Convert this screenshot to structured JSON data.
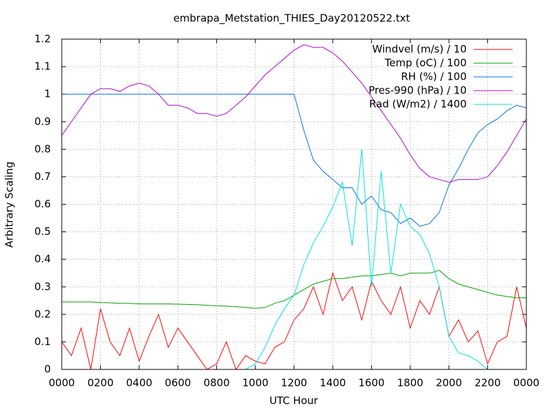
{
  "chart_data": {
    "type": "line",
    "title": "embrapa_Metstation_THIES_Day20120522.txt",
    "x_label": "UTC Hour",
    "y_label": "Arbitrary Scaling",
    "grid": true,
    "legend": "top-right",
    "xlim": [
      0,
      24
    ],
    "ylim": [
      0,
      1.2
    ],
    "xticks": [
      {
        "value": 0,
        "label": "0000"
      },
      {
        "value": 2,
        "label": "0200"
      },
      {
        "value": 4,
        "label": "0400"
      },
      {
        "value": 6,
        "label": "0600"
      },
      {
        "value": 8,
        "label": "0800"
      },
      {
        "value": 10,
        "label": "1000"
      },
      {
        "value": 12,
        "label": "1200"
      },
      {
        "value": 14,
        "label": "1400"
      },
      {
        "value": 16,
        "label": "1600"
      },
      {
        "value": 18,
        "label": "1800"
      },
      {
        "value": 20,
        "label": "2000"
      },
      {
        "value": 22,
        "label": "2200"
      },
      {
        "value": 24,
        "label": "0000"
      }
    ],
    "yticks": [
      0,
      0.1,
      0.2,
      0.3,
      0.4,
      0.5,
      0.6,
      0.7,
      0.8,
      0.9,
      1,
      1.1,
      1.2
    ],
    "x": [
      0,
      0.5,
      1,
      1.5,
      2,
      2.5,
      3,
      3.5,
      4,
      4.5,
      5,
      5.5,
      6,
      6.5,
      7,
      7.5,
      8,
      8.5,
      9,
      9.5,
      10,
      10.5,
      11,
      11.5,
      12,
      12.5,
      13,
      13.5,
      14,
      14.5,
      15,
      15.5,
      16,
      16.5,
      17,
      17.5,
      18,
      18.5,
      19,
      19.5,
      20,
      20.5,
      21,
      21.5,
      22,
      22.5,
      23,
      23.5,
      24
    ],
    "series": [
      {
        "name": "Windvel (m/s) / 10",
        "color": "#ff0000",
        "values": [
          0.1,
          0.05,
          0.15,
          0.0,
          0.22,
          0.1,
          0.05,
          0.15,
          0.03,
          0.12,
          0.2,
          0.08,
          0.15,
          0.1,
          0.05,
          0.0,
          0.02,
          0.1,
          0.0,
          0.05,
          0.03,
          0.02,
          0.08,
          0.1,
          0.18,
          0.22,
          0.3,
          0.2,
          0.35,
          0.25,
          0.3,
          0.18,
          0.32,
          0.25,
          0.2,
          0.3,
          0.15,
          0.25,
          0.2,
          0.3,
          0.12,
          0.18,
          0.1,
          0.14,
          0.02,
          0.1,
          0.12,
          0.3,
          0.15
        ]
      },
      {
        "name": "Temp (oC) / 100",
        "color": "#00a000",
        "values": [
          0.245,
          0.245,
          0.245,
          0.245,
          0.243,
          0.242,
          0.24,
          0.24,
          0.238,
          0.238,
          0.238,
          0.238,
          0.237,
          0.236,
          0.235,
          0.233,
          0.231,
          0.23,
          0.228,
          0.225,
          0.222,
          0.225,
          0.24,
          0.25,
          0.27,
          0.29,
          0.31,
          0.32,
          0.33,
          0.33,
          0.335,
          0.34,
          0.34,
          0.345,
          0.35,
          0.34,
          0.35,
          0.35,
          0.35,
          0.36,
          0.33,
          0.31,
          0.3,
          0.29,
          0.28,
          0.27,
          0.265,
          0.26,
          0.26
        ]
      },
      {
        "name": "RH (%) / 100",
        "color": "#0070e0",
        "values": [
          1,
          1,
          1,
          1,
          1,
          1,
          1,
          1,
          1,
          1,
          1,
          1,
          1,
          1,
          1,
          1,
          1,
          1,
          1,
          1,
          1,
          1,
          1,
          1,
          1,
          0.87,
          0.76,
          0.72,
          0.69,
          0.66,
          0.66,
          0.6,
          0.63,
          0.58,
          0.57,
          0.53,
          0.55,
          0.52,
          0.53,
          0.57,
          0.67,
          0.73,
          0.8,
          0.86,
          0.89,
          0.91,
          0.94,
          0.96,
          0.95
        ]
      },
      {
        "name": "Pres-990 (hPa) / 10",
        "color": "#b000d8",
        "values": [
          0.85,
          0.9,
          0.95,
          1.0,
          1.02,
          1.02,
          1.01,
          1.03,
          1.04,
          1.03,
          1.0,
          0.96,
          0.96,
          0.95,
          0.93,
          0.93,
          0.92,
          0.93,
          0.96,
          0.99,
          1.03,
          1.07,
          1.1,
          1.13,
          1.16,
          1.18,
          1.17,
          1.17,
          1.15,
          1.12,
          1.08,
          1.04,
          0.99,
          0.94,
          0.89,
          0.84,
          0.78,
          0.73,
          0.7,
          0.69,
          0.68,
          0.69,
          0.69,
          0.69,
          0.7,
          0.74,
          0.79,
          0.85,
          0.91
        ]
      },
      {
        "name": "Rad (W/m2) / 1400",
        "color": "#00e0e0",
        "values": [
          0,
          0,
          0,
          0,
          0,
          0,
          0,
          0,
          0,
          0,
          0,
          0,
          0,
          0,
          0,
          0,
          0,
          0,
          0,
          0,
          0.02,
          0.08,
          0.16,
          0.22,
          0.27,
          0.38,
          0.46,
          0.52,
          0.59,
          0.68,
          0.45,
          0.8,
          0.3,
          0.72,
          0.35,
          0.6,
          0.52,
          0.49,
          0.42,
          0.3,
          0.12,
          0.06,
          0.05,
          0.03,
          0,
          0,
          0,
          0,
          0
        ]
      }
    ]
  }
}
